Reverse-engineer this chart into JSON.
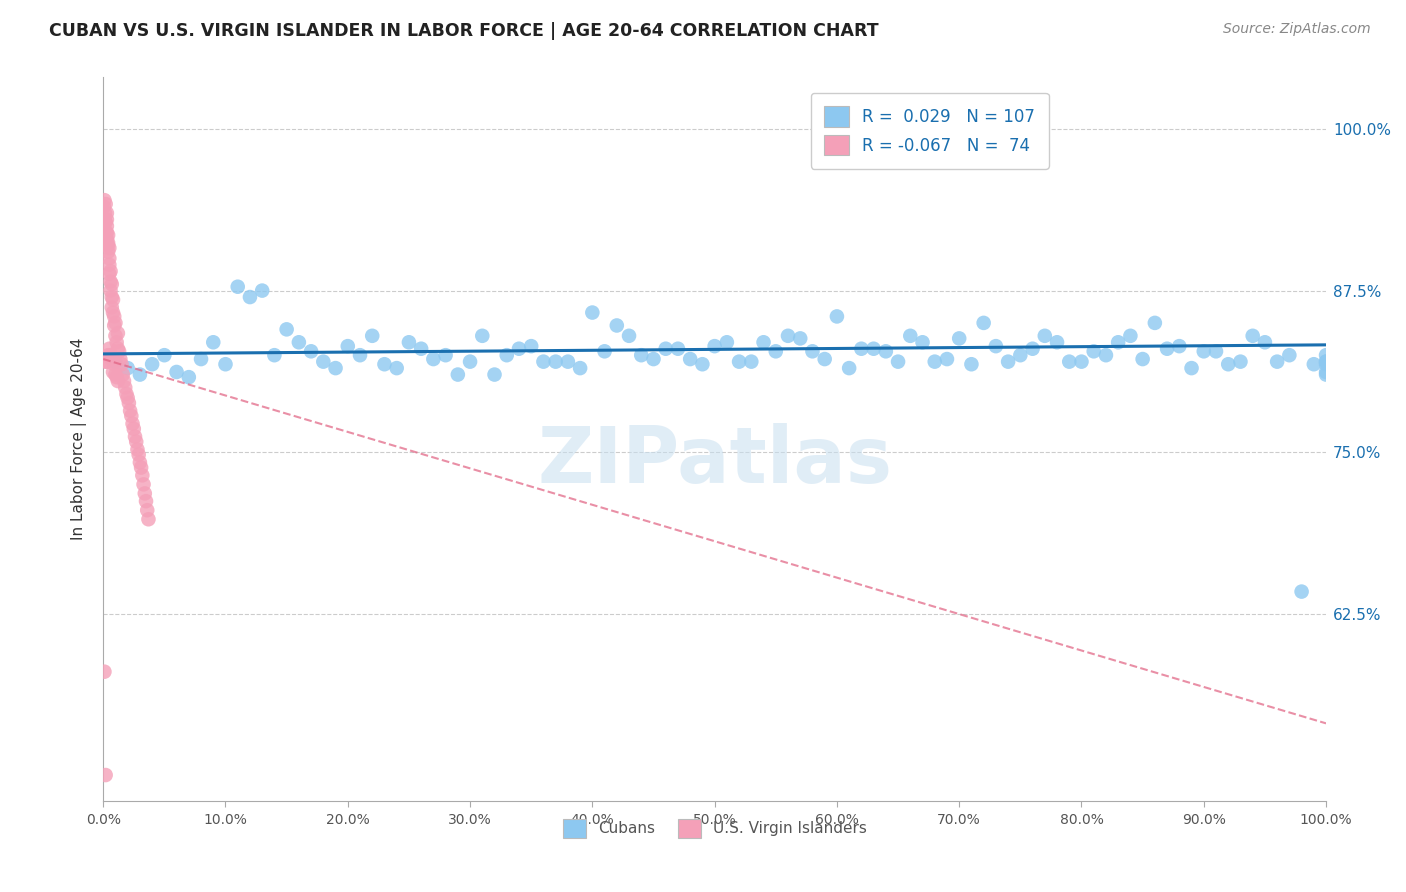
{
  "title": "CUBAN VS U.S. VIRGIN ISLANDER IN LABOR FORCE | AGE 20-64 CORRELATION CHART",
  "source": "Source: ZipAtlas.com",
  "ylabel": "In Labor Force | Age 20-64",
  "xlim": [
    0.0,
    1.0
  ],
  "ylim": [
    0.48,
    1.04
  ],
  "yticks": [
    0.625,
    0.75,
    0.875,
    1.0
  ],
  "ytick_labels": [
    "62.5%",
    "75.0%",
    "87.5%",
    "100.0%"
  ],
  "xticks": [
    0.0,
    0.1,
    0.2,
    0.3,
    0.4,
    0.5,
    0.6,
    0.7,
    0.8,
    0.9,
    1.0
  ],
  "xtick_labels": [
    "0.0%",
    "10.0%",
    "20.0%",
    "30.0%",
    "40.0%",
    "50.0%",
    "60.0%",
    "70.0%",
    "80.0%",
    "90.0%",
    "100.0%"
  ],
  "cuban_color": "#8DC8F0",
  "virgin_color": "#F4A0B8",
  "cuban_line_color": "#1A6FAF",
  "virgin_line_color": "#E06080",
  "legend_r_cuban": "0.029",
  "legend_n_cuban": "107",
  "legend_r_virgin": "-0.067",
  "legend_n_virgin": "74",
  "watermark": "ZIPatlas",
  "background_color": "#ffffff",
  "grid_color": "#cccccc",
  "cuban_x": [
    0.01,
    0.02,
    0.03,
    0.04,
    0.05,
    0.06,
    0.07,
    0.08,
    0.09,
    0.1,
    0.12,
    0.14,
    0.16,
    0.18,
    0.2,
    0.22,
    0.24,
    0.26,
    0.28,
    0.3,
    0.15,
    0.17,
    0.19,
    0.21,
    0.23,
    0.25,
    0.27,
    0.29,
    0.31,
    0.33,
    0.35,
    0.37,
    0.39,
    0.41,
    0.43,
    0.45,
    0.47,
    0.49,
    0.51,
    0.53,
    0.55,
    0.57,
    0.59,
    0.61,
    0.63,
    0.65,
    0.67,
    0.69,
    0.71,
    0.73,
    0.75,
    0.77,
    0.79,
    0.81,
    0.83,
    0.85,
    0.87,
    0.89,
    0.91,
    0.93,
    0.95,
    0.97,
    0.99,
    1.0,
    1.0,
    1.0,
    1.0,
    1.0,
    0.13,
    0.32,
    0.36,
    0.4,
    0.44,
    0.5,
    0.56,
    0.6,
    0.64,
    0.7,
    0.72,
    0.74,
    0.78,
    0.8,
    0.82,
    0.84,
    0.88,
    0.9,
    0.92,
    0.94,
    0.11,
    0.34,
    0.38,
    0.42,
    0.46,
    0.48,
    0.52,
    0.54,
    0.58,
    0.62,
    0.66,
    0.68,
    0.76,
    0.86,
    0.96,
    0.98,
    1.0
  ],
  "cuban_y": [
    0.82,
    0.815,
    0.81,
    0.818,
    0.825,
    0.812,
    0.808,
    0.822,
    0.835,
    0.818,
    0.87,
    0.825,
    0.835,
    0.82,
    0.832,
    0.84,
    0.815,
    0.83,
    0.825,
    0.82,
    0.845,
    0.828,
    0.815,
    0.825,
    0.818,
    0.835,
    0.822,
    0.81,
    0.84,
    0.825,
    0.832,
    0.82,
    0.815,
    0.828,
    0.84,
    0.822,
    0.83,
    0.818,
    0.835,
    0.82,
    0.828,
    0.838,
    0.822,
    0.815,
    0.83,
    0.82,
    0.835,
    0.822,
    0.818,
    0.832,
    0.825,
    0.84,
    0.82,
    0.828,
    0.835,
    0.822,
    0.83,
    0.815,
    0.828,
    0.82,
    0.835,
    0.825,
    0.818,
    0.812,
    0.82,
    0.825,
    0.818,
    0.81,
    0.875,
    0.81,
    0.82,
    0.858,
    0.825,
    0.832,
    0.84,
    0.855,
    0.828,
    0.838,
    0.85,
    0.82,
    0.835,
    0.82,
    0.825,
    0.84,
    0.832,
    0.828,
    0.818,
    0.84,
    0.878,
    0.83,
    0.82,
    0.848,
    0.83,
    0.822,
    0.82,
    0.835,
    0.828,
    0.83,
    0.84,
    0.82,
    0.83,
    0.85,
    0.82,
    0.642,
    0.82
  ],
  "virgin_x": [
    0.0005,
    0.001,
    0.001,
    0.0015,
    0.002,
    0.002,
    0.002,
    0.003,
    0.003,
    0.003,
    0.003,
    0.003,
    0.004,
    0.004,
    0.004,
    0.004,
    0.005,
    0.005,
    0.005,
    0.005,
    0.006,
    0.006,
    0.006,
    0.007,
    0.007,
    0.007,
    0.008,
    0.008,
    0.009,
    0.009,
    0.01,
    0.01,
    0.011,
    0.012,
    0.012,
    0.013,
    0.014,
    0.015,
    0.016,
    0.017,
    0.018,
    0.019,
    0.02,
    0.021,
    0.022,
    0.023,
    0.024,
    0.025,
    0.026,
    0.027,
    0.028,
    0.029,
    0.03,
    0.031,
    0.032,
    0.033,
    0.034,
    0.035,
    0.036,
    0.037,
    0.002,
    0.003,
    0.004,
    0.005,
    0.006,
    0.007,
    0.008,
    0.009,
    0.01,
    0.011,
    0.012,
    0.001,
    0.002
  ],
  "virgin_y": [
    0.94,
    0.93,
    0.945,
    0.935,
    0.942,
    0.928,
    0.92,
    0.93,
    0.915,
    0.925,
    0.935,
    0.92,
    0.91,
    0.918,
    0.905,
    0.912,
    0.9,
    0.908,
    0.895,
    0.888,
    0.882,
    0.89,
    0.875,
    0.88,
    0.87,
    0.862,
    0.858,
    0.868,
    0.855,
    0.848,
    0.84,
    0.85,
    0.835,
    0.83,
    0.842,
    0.828,
    0.822,
    0.818,
    0.81,
    0.805,
    0.8,
    0.795,
    0.792,
    0.788,
    0.782,
    0.778,
    0.772,
    0.768,
    0.762,
    0.758,
    0.752,
    0.748,
    0.742,
    0.738,
    0.732,
    0.725,
    0.718,
    0.712,
    0.705,
    0.698,
    0.82,
    0.82,
    0.825,
    0.83,
    0.825,
    0.822,
    0.812,
    0.818,
    0.81,
    0.808,
    0.805,
    0.58,
    0.5
  ],
  "virgin_trend_x": [
    0.0,
    1.0
  ],
  "virgin_trend_y_start": 0.822,
  "virgin_trend_y_end": 0.54,
  "cuban_trend_y": 0.828
}
